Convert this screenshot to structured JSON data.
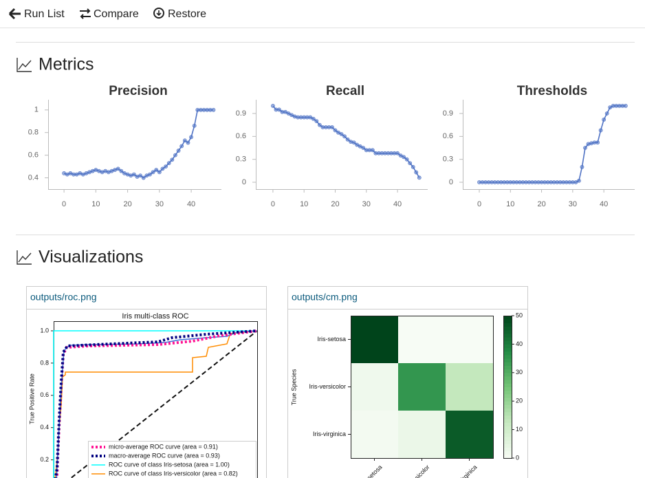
{
  "toolbar": {
    "buttons": [
      "Run List",
      "Compare",
      "Restore"
    ]
  },
  "sections": [
    "Metrics",
    "Visualizations"
  ],
  "chart_data": [
    {
      "type": "line",
      "title": "Precision",
      "color": "#4f72c4",
      "x": [
        0,
        1,
        2,
        3,
        4,
        5,
        6,
        7,
        8,
        9,
        10,
        11,
        12,
        13,
        14,
        15,
        16,
        17,
        18,
        19,
        20,
        21,
        22,
        23,
        24,
        25,
        26,
        27,
        28,
        29,
        30,
        31,
        32,
        33,
        34,
        35,
        36,
        37,
        38,
        39,
        40,
        41,
        42,
        43,
        44,
        45,
        46,
        47
      ],
      "values": [
        0.44,
        0.43,
        0.44,
        0.43,
        0.43,
        0.44,
        0.43,
        0.44,
        0.45,
        0.46,
        0.47,
        0.46,
        0.45,
        0.46,
        0.45,
        0.46,
        0.47,
        0.48,
        0.46,
        0.44,
        0.43,
        0.42,
        0.43,
        0.41,
        0.42,
        0.4,
        0.42,
        0.43,
        0.45,
        0.47,
        0.45,
        0.48,
        0.5,
        0.53,
        0.56,
        0.6,
        0.64,
        0.68,
        0.73,
        0.71,
        0.76,
        0.86,
        1,
        1,
        1,
        1,
        1,
        1
      ],
      "xlim": [
        -5,
        49.5
      ],
      "xticks": [
        0,
        10,
        20,
        30,
        40
      ],
      "ylim": [
        0.3,
        1.09
      ],
      "yticks": [
        0.4,
        0.6,
        0.8,
        1
      ]
    },
    {
      "type": "line",
      "title": "Recall",
      "color": "#4f72c4",
      "x": [
        0,
        1,
        2,
        3,
        4,
        5,
        6,
        7,
        8,
        9,
        10,
        11,
        12,
        13,
        14,
        15,
        16,
        17,
        18,
        19,
        20,
        21,
        22,
        23,
        24,
        25,
        26,
        27,
        28,
        29,
        30,
        31,
        32,
        33,
        34,
        35,
        36,
        37,
        38,
        39,
        40,
        41,
        42,
        43,
        44,
        45,
        46,
        47
      ],
      "values": [
        1.0,
        0.95,
        0.95,
        0.92,
        0.92,
        0.9,
        0.88,
        0.86,
        0.85,
        0.85,
        0.85,
        0.85,
        0.85,
        0.83,
        0.8,
        0.75,
        0.72,
        0.72,
        0.72,
        0.72,
        0.68,
        0.65,
        0.63,
        0.6,
        0.56,
        0.53,
        0.52,
        0.49,
        0.47,
        0.45,
        0.42,
        0.42,
        0.42,
        0.38,
        0.38,
        0.38,
        0.38,
        0.38,
        0.38,
        0.38,
        0.38,
        0.35,
        0.33,
        0.3,
        0.25,
        0.2,
        0.13,
        0.06
      ],
      "xlim": [
        -5.5,
        49.7
      ],
      "xticks": [
        0,
        10,
        20,
        30,
        40
      ],
      "ylim": [
        -0.09,
        1.08
      ],
      "yticks": [
        0,
        0.3,
        0.6,
        0.9
      ]
    },
    {
      "type": "line",
      "title": "Thresholds",
      "color": "#4f72c4",
      "x": [
        0,
        1,
        2,
        3,
        4,
        5,
        6,
        7,
        8,
        9,
        10,
        11,
        12,
        13,
        14,
        15,
        16,
        17,
        18,
        19,
        20,
        21,
        22,
        23,
        24,
        25,
        26,
        27,
        28,
        29,
        30,
        31,
        32,
        33,
        34,
        35,
        36,
        37,
        38,
        39,
        40,
        41,
        42,
        43,
        44,
        45,
        46,
        47
      ],
      "values": [
        0,
        0,
        0,
        0,
        0,
        0,
        0,
        0,
        0,
        0,
        0,
        0,
        0,
        0,
        0,
        0,
        0,
        0,
        0,
        0,
        0,
        0,
        0,
        0,
        0,
        0,
        0,
        0,
        0,
        0,
        0,
        0,
        0.02,
        0.2,
        0.45,
        0.5,
        0.51,
        0.52,
        0.52,
        0.68,
        0.82,
        0.9,
        0.98,
        1.0,
        1.0,
        1.0,
        1.0,
        1.0
      ],
      "xlim": [
        -5.3,
        49.9
      ],
      "xticks": [
        0,
        10,
        20,
        30,
        40
      ],
      "ylim": [
        -0.09,
        1.08
      ],
      "yticks": [
        0,
        0.3,
        0.6,
        0.9
      ]
    }
  ],
  "cards": [
    {
      "title": "outputs/roc.png",
      "plot_title": "Iris multi-class ROC",
      "y_label": "True Positive Rate",
      "y_ticks": [
        "1.0",
        "0.8",
        "0.6",
        "0.4",
        "0.2"
      ],
      "legend": [
        {
          "label": "micro-average ROC curve (area = 0.91)",
          "color": "#ff1493"
        },
        {
          "label": "macro-average ROC curve (area = 0.93)",
          "color": "#000080"
        },
        {
          "label": "ROC curve of class Iris-setosa (area = 1.00)",
          "color": "#00ffff"
        },
        {
          "label": "ROC curve of class Iris-versicolor (area = 0.82)",
          "color": "#ff8c00"
        }
      ]
    },
    {
      "title": "outputs/cm.png",
      "y_label": "True Species",
      "classes": [
        "Iris-setosa",
        "Iris-versicolor",
        "Iris-virginica"
      ],
      "matrix": [
        [
          50,
          0,
          0
        ],
        [
          2,
          35,
          13
        ],
        [
          1,
          3,
          46
        ]
      ],
      "colorbar_ticks": [
        0,
        10,
        20,
        30,
        40,
        50
      ]
    }
  ]
}
